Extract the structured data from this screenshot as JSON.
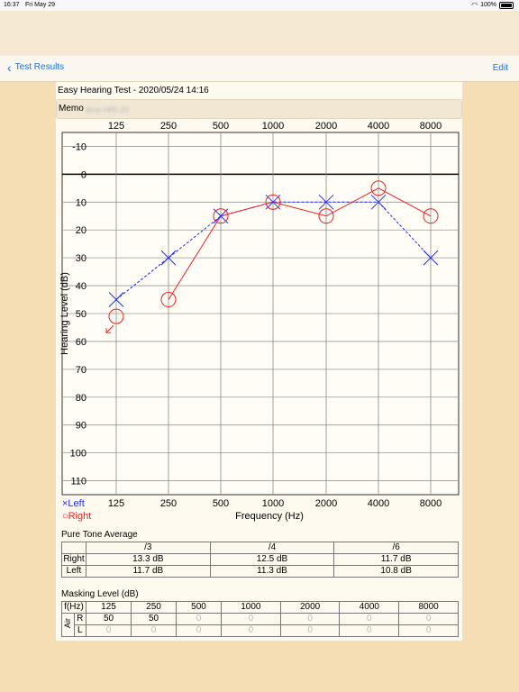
{
  "status": {
    "time": "16:37",
    "date": "Fri May 29",
    "battery": "100%"
  },
  "nav": {
    "back_label": "Test Results",
    "edit_label": "Edit"
  },
  "test": {
    "title": "Easy Hearing Test - 2020/05/24 14:16",
    "memo_label": "Memo",
    "memo_value": "Ikno HRI-20"
  },
  "chart_data": {
    "type": "line",
    "categories": [
      "125",
      "250",
      "500",
      "1000",
      "2000",
      "4000",
      "8000"
    ],
    "ylim": [
      -15,
      115
    ],
    "y_ticks": [
      -10,
      0,
      10,
      20,
      30,
      40,
      50,
      60,
      70,
      80,
      90,
      100,
      110
    ],
    "ylabel": "Hearing Level (dB)",
    "xlabel": "Frequency (Hz)",
    "series": [
      {
        "name": "Left",
        "marker": "×",
        "color": "#1f2bff",
        "values": [
          45,
          30,
          15,
          10,
          10,
          10,
          30
        ]
      },
      {
        "name": "Right",
        "marker": "○",
        "color": "#ee2222",
        "values": [
          51,
          45,
          15,
          10,
          15,
          5,
          15
        ]
      }
    ],
    "right_no_response_at": "125",
    "grid": true,
    "legend": "bottom-left"
  },
  "pta": {
    "title": "Pure Tone Average",
    "headers": [
      "/3",
      "/4",
      "/6"
    ],
    "rows": [
      {
        "label": "Right",
        "values": [
          "13.3 dB",
          "12.5 dB",
          "11.7 dB"
        ]
      },
      {
        "label": "Left",
        "values": [
          "11.7 dB",
          "11.3 dB",
          "10.8 dB"
        ]
      }
    ]
  },
  "masking": {
    "title": "Masking Level (dB)",
    "freq_label": "f(Hz)",
    "air_label": "Air",
    "frequencies": [
      "125",
      "250",
      "500",
      "1000",
      "2000",
      "4000",
      "8000"
    ],
    "right_label": "R",
    "left_label": "L",
    "right": [
      "50",
      "50",
      "0",
      "0",
      "0",
      "0",
      "0"
    ],
    "left": [
      "0",
      "0",
      "0",
      "0",
      "0",
      "0",
      "0"
    ]
  }
}
